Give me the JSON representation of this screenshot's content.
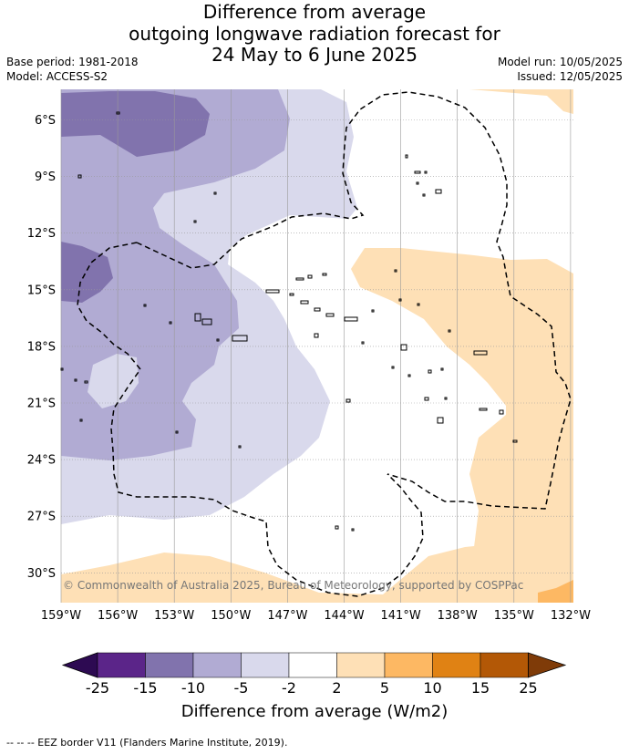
{
  "title_lines": [
    "Difference from average",
    "outgoing longwave radiation forecast for",
    "24 May to 6 June 2025"
  ],
  "meta": {
    "base_period": "Base period: 1981-2018",
    "model": "Model: ACCESS-S2",
    "model_run": "Model run: 10/05/2025",
    "issued": "Issued: 12/05/2025"
  },
  "map": {
    "lat_labels": [
      "6°S",
      "9°S",
      "12°S",
      "15°S",
      "18°S",
      "21°S",
      "24°S",
      "27°S",
      "30°S"
    ],
    "lon_labels": [
      "159°W",
      "156°W",
      "153°W",
      "150°W",
      "147°W",
      "144°W",
      "141°W",
      "138°W",
      "135°W",
      "132°W"
    ],
    "copyright": "© Commonwealth of Australia 2025, Bureau of Meteorology, supported by COSPPac"
  },
  "colorbar": {
    "title": "Difference from average (W/m2)",
    "labels": [
      "-25",
      "-15",
      "-10",
      "-5",
      "-2",
      "2",
      "5",
      "10",
      "15",
      "25"
    ],
    "colors": {
      "below_min": "#2d0a52",
      "bins": [
        "#5b2589",
        "#8173ad",
        "#b1abd3",
        "#d9d9ec",
        "#ffffff",
        "#fee0b6",
        "#fdb863",
        "#e08214",
        "#b35806"
      ],
      "above_max": "#7f3b08"
    }
  },
  "footnote": "--  --  -- EEZ border V11 (Flanders Marine Institute, 2019)."
}
